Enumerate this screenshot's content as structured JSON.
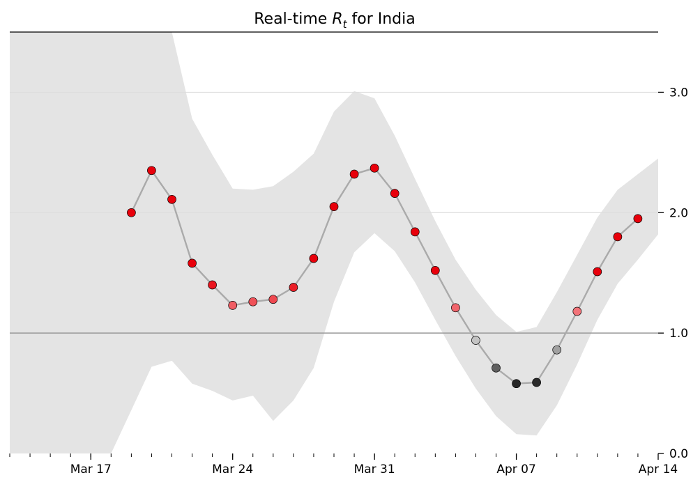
{
  "chart_data": {
    "type": "line",
    "title_main": "Real-time ",
    "title_symbol": "R",
    "title_subscript": "t",
    "title_suffix": " for India",
    "xlabel": "",
    "ylabel": "",
    "ylim": [
      0,
      3.5
    ],
    "xlim": [
      "2020-03-13",
      "2020-04-14"
    ],
    "y_ticks": [
      0.0,
      1.0,
      2.0,
      3.0
    ],
    "y_tick_labels": [
      "0.0",
      "1.0",
      "2.0",
      "3.0"
    ],
    "x_ticks": [
      "2020-03-17",
      "2020-03-24",
      "2020-03-31",
      "2020-04-07",
      "2020-04-14"
    ],
    "x_tick_labels": [
      "Mar 17",
      "Mar 24",
      "Mar 31",
      "Apr 07",
      "Apr 14"
    ],
    "reference_line": 1.0,
    "grid": "horizontal",
    "colors": {
      "band": "#e4e4e4",
      "line": "#aaaaaa",
      "reference": "#999999",
      "grid": "#dddddd",
      "above_one": "#e8000b",
      "near_one": "#ffffff",
      "below_one": "#1a1a1a"
    },
    "series": [
      {
        "dates": [
          "2020-03-19",
          "2020-03-20",
          "2020-03-21",
          "2020-03-22",
          "2020-03-23",
          "2020-03-24",
          "2020-03-25",
          "2020-03-26",
          "2020-03-27",
          "2020-03-28",
          "2020-03-29",
          "2020-03-30",
          "2020-03-31",
          "2020-04-01",
          "2020-04-02",
          "2020-04-03",
          "2020-04-04",
          "2020-04-05",
          "2020-04-06",
          "2020-04-07",
          "2020-04-08",
          "2020-04-09",
          "2020-04-10",
          "2020-04-11",
          "2020-04-12",
          "2020-04-13"
        ],
        "values": [
          2.0,
          2.35,
          2.11,
          1.58,
          1.4,
          1.23,
          1.26,
          1.28,
          1.38,
          1.62,
          2.05,
          2.32,
          2.37,
          2.16,
          1.84,
          1.52,
          1.21,
          0.94,
          0.71,
          0.58,
          0.59,
          0.86,
          1.18,
          1.51,
          1.8,
          1.95
        ]
      }
    ],
    "credible_interval": {
      "dates": [
        "2020-03-13",
        "2020-03-14",
        "2020-03-15",
        "2020-03-16",
        "2020-03-17",
        "2020-03-18",
        "2020-03-19",
        "2020-03-20",
        "2020-03-21",
        "2020-03-22",
        "2020-03-23",
        "2020-03-24",
        "2020-03-25",
        "2020-03-26",
        "2020-03-27",
        "2020-03-28",
        "2020-03-29",
        "2020-03-30",
        "2020-03-31",
        "2020-04-01",
        "2020-04-02",
        "2020-04-03",
        "2020-04-04",
        "2020-04-05",
        "2020-04-06",
        "2020-04-07",
        "2020-04-08",
        "2020-04-09",
        "2020-04-10",
        "2020-04-11",
        "2020-04-12",
        "2020-04-13",
        "2020-04-14"
      ],
      "upper": [
        3.5,
        3.5,
        3.5,
        3.5,
        3.5,
        3.5,
        3.5,
        3.5,
        3.5,
        2.78,
        2.48,
        2.2,
        2.19,
        2.22,
        2.34,
        2.49,
        2.84,
        3.01,
        2.95,
        2.64,
        2.28,
        1.93,
        1.61,
        1.36,
        1.15,
        1.01,
        1.05,
        1.34,
        1.65,
        1.96,
        2.19,
        2.32,
        2.45
      ],
      "lower": [
        0.0,
        0.0,
        0.0,
        0.0,
        0.0,
        0.0,
        0.36,
        0.72,
        0.77,
        0.58,
        0.52,
        0.44,
        0.48,
        0.27,
        0.44,
        0.71,
        1.26,
        1.67,
        1.83,
        1.68,
        1.42,
        1.11,
        0.81,
        0.54,
        0.31,
        0.16,
        0.15,
        0.4,
        0.74,
        1.11,
        1.41,
        1.61,
        1.82
      ]
    }
  }
}
